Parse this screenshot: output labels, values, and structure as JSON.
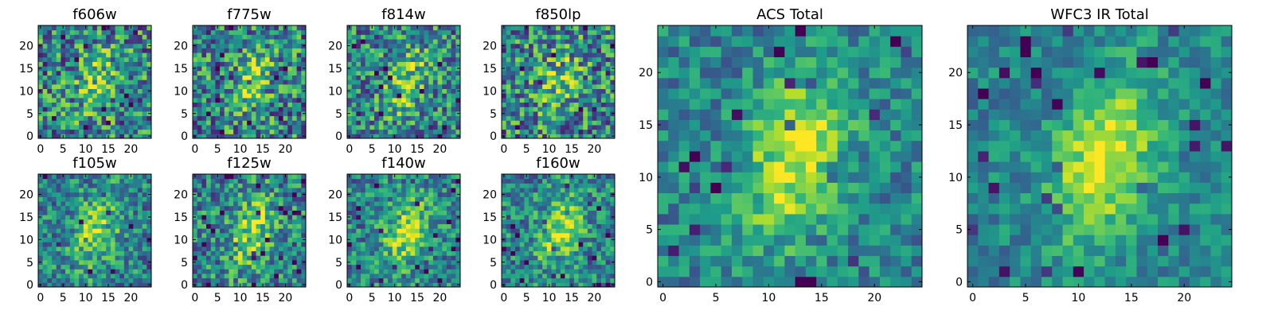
{
  "chart_data": [
    {
      "type": "heatmap",
      "title": "f606w",
      "xlim": [
        0,
        24
      ],
      "ylim": [
        0,
        24
      ],
      "xticks": [
        0,
        5,
        10,
        15,
        20
      ],
      "yticks": [
        0,
        5,
        10,
        15,
        20
      ],
      "colormap": "viridis",
      "seed": 11,
      "noise": 0.55,
      "peak": 0.5
    },
    {
      "type": "heatmap",
      "title": "f775w",
      "xlim": [
        0,
        24
      ],
      "ylim": [
        0,
        24
      ],
      "xticks": [
        0,
        5,
        10,
        15,
        20
      ],
      "yticks": [
        0,
        5,
        10,
        15,
        20
      ],
      "colormap": "viridis",
      "seed": 23,
      "noise": 0.55,
      "peak": 0.55
    },
    {
      "type": "heatmap",
      "title": "f814w",
      "xlim": [
        0,
        24
      ],
      "ylim": [
        0,
        24
      ],
      "xticks": [
        0,
        5,
        10,
        15,
        20
      ],
      "yticks": [
        0,
        5,
        10,
        15,
        20
      ],
      "colormap": "viridis",
      "seed": 37,
      "noise": 0.5,
      "peak": 0.6
    },
    {
      "type": "heatmap",
      "title": "f850lp",
      "xlim": [
        0,
        24
      ],
      "ylim": [
        0,
        24
      ],
      "xticks": [
        0,
        5,
        10,
        15,
        20
      ],
      "yticks": [
        0,
        5,
        10,
        15,
        20
      ],
      "colormap": "viridis",
      "seed": 41,
      "noise": 0.55,
      "peak": 0.5
    },
    {
      "type": "heatmap",
      "title": "f105w",
      "xlim": [
        0,
        24
      ],
      "ylim": [
        0,
        24
      ],
      "xticks": [
        0,
        5,
        10,
        15,
        20
      ],
      "yticks": [
        0,
        5,
        10,
        15,
        20
      ],
      "colormap": "viridis",
      "seed": 53,
      "noise": 0.4,
      "peak": 0.7
    },
    {
      "type": "heatmap",
      "title": "f125w",
      "xlim": [
        0,
        24
      ],
      "ylim": [
        0,
        24
      ],
      "xticks": [
        0,
        5,
        10,
        15,
        20
      ],
      "yticks": [
        0,
        5,
        10,
        15,
        20
      ],
      "colormap": "viridis",
      "seed": 67,
      "noise": 0.45,
      "peak": 0.7
    },
    {
      "type": "heatmap",
      "title": "f140w",
      "xlim": [
        0,
        24
      ],
      "ylim": [
        0,
        24
      ],
      "xticks": [
        0,
        5,
        10,
        15,
        20
      ],
      "yticks": [
        0,
        5,
        10,
        15,
        20
      ],
      "colormap": "viridis",
      "seed": 71,
      "noise": 0.4,
      "peak": 0.75
    },
    {
      "type": "heatmap",
      "title": "f160w",
      "xlim": [
        0,
        24
      ],
      "ylim": [
        0,
        24
      ],
      "xticks": [
        0,
        5,
        10,
        15,
        20
      ],
      "yticks": [
        0,
        5,
        10,
        15,
        20
      ],
      "colormap": "viridis",
      "seed": 83,
      "noise": 0.4,
      "peak": 0.75
    },
    {
      "type": "heatmap",
      "title": "ACS Total",
      "xlim": [
        0,
        24
      ],
      "ylim": [
        0,
        24
      ],
      "xticks": [
        0,
        5,
        10,
        15,
        20
      ],
      "yticks": [
        0,
        5,
        10,
        15,
        20
      ],
      "colormap": "viridis",
      "seed": 97,
      "noise": 0.3,
      "peak": 0.9
    },
    {
      "type": "heatmap",
      "title": "WFC3 IR Total",
      "xlim": [
        0,
        24
      ],
      "ylim": [
        0,
        24
      ],
      "xticks": [
        0,
        5,
        10,
        15,
        20
      ],
      "yticks": [
        0,
        5,
        10,
        15,
        20
      ],
      "colormap": "viridis",
      "seed": 109,
      "noise": 0.25,
      "peak": 0.95
    }
  ]
}
